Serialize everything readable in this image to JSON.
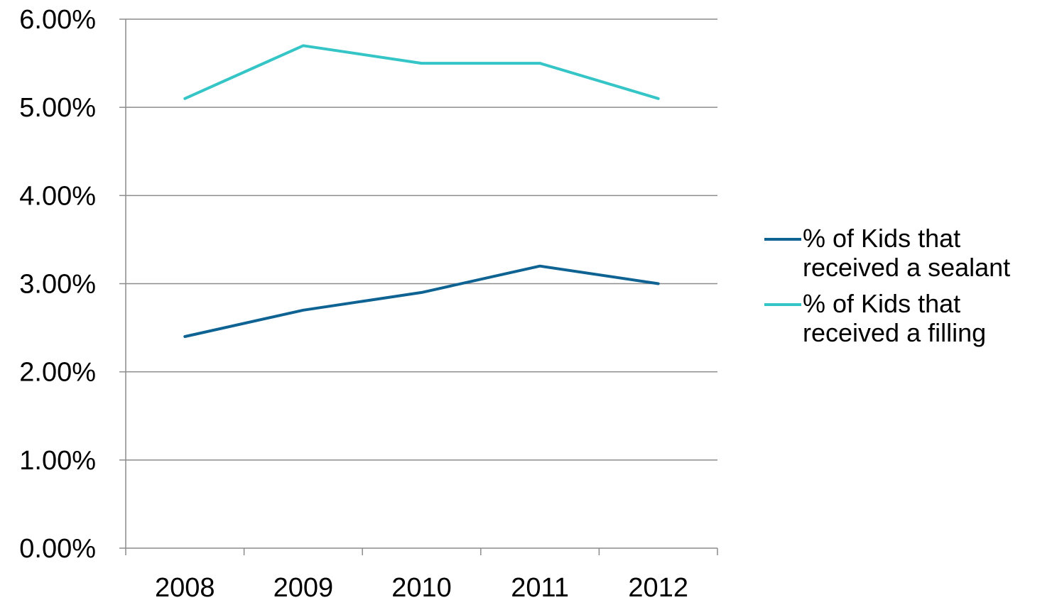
{
  "chart_data": {
    "type": "line",
    "categories": [
      "2008",
      "2009",
      "2010",
      "2011",
      "2012"
    ],
    "series": [
      {
        "name": "% of Kids that received a sealant",
        "values": [
          2.4,
          2.7,
          2.9,
          3.2,
          3.0
        ],
        "color": "#0e6393"
      },
      {
        "name": "% of Kids that received a filling",
        "values": [
          5.1,
          5.7,
          5.5,
          5.5,
          5.1
        ],
        "color": "#35c5c7"
      }
    ],
    "y_ticks": [
      "0.00%",
      "1.00%",
      "2.00%",
      "3.00%",
      "4.00%",
      "5.00%",
      "6.00%"
    ],
    "ylim": [
      0,
      6
    ],
    "grid": true,
    "legend": "right",
    "gridline_color": "#8c8c8c"
  }
}
